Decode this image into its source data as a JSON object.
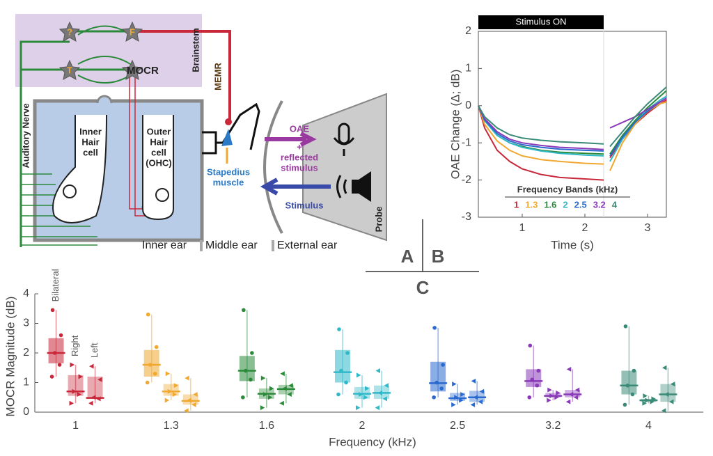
{
  "panel_labels": [
    "A",
    "B",
    "C"
  ],
  "diagram": {
    "brainstem": "Brainstem",
    "memr": "MEMR",
    "mocr": "MOCR",
    "auditory_nerve": "Auditory Nerve",
    "star_labels": [
      "?",
      "F",
      "T"
    ],
    "inner_hair_cell": [
      "Inner",
      "Hair",
      "cell"
    ],
    "outer_hair_cell": [
      "Outer",
      "Hair",
      "cell",
      "(OHC)"
    ],
    "stapedius_muscle": [
      "Stapedius",
      "muscle"
    ],
    "oae": "OAE",
    "plus": "+",
    "reflected_stimulus": [
      "reflected",
      "stimulus"
    ],
    "stimulus": "Stimulus",
    "probe": "Probe",
    "regions": [
      "Inner ear",
      "Middle ear",
      "External ear"
    ]
  },
  "chart_data": [
    {
      "type": "line",
      "ylabel": "OAE Change (Δ; dB)",
      "xlabel": "Time (s)",
      "annotation": {
        "text": "Stimulus ON",
        "x": [
          0.3,
          2.3
        ]
      },
      "legend_title": "Frequency Bands (kHz)",
      "x": [
        0.3,
        0.4,
        0.6,
        0.8,
        1.0,
        1.3,
        1.6,
        2.0,
        2.3,
        2.35,
        2.4,
        2.6,
        2.8,
        3.0,
        3.2,
        3.3
      ],
      "xlim": [
        0.3,
        3.3
      ],
      "xticks": [
        1,
        2,
        3
      ],
      "ylim": [
        -3,
        2
      ],
      "yticks": [
        -3,
        -2,
        -1,
        0,
        1,
        2
      ],
      "series": [
        {
          "name": "1",
          "color": "#c8283a",
          "values": [
            0,
            -0.6,
            -1.2,
            -1.5,
            -1.7,
            -1.85,
            -1.93,
            -1.97,
            -2.0,
            null,
            -1.4,
            -0.9,
            -0.5,
            -0.2,
            0.05,
            0.15
          ]
        },
        {
          "name": "1.3",
          "color": "#f0a830",
          "values": [
            0,
            -0.5,
            -0.95,
            -1.2,
            -1.35,
            -1.45,
            -1.5,
            -1.55,
            -1.57,
            null,
            -1.75,
            -1.0,
            -0.5,
            -0.15,
            0.05,
            0.1
          ]
        },
        {
          "name": "1.6",
          "color": "#2a8a3a",
          "values": [
            0,
            -0.4,
            -0.8,
            -1.0,
            -1.1,
            -1.2,
            -1.25,
            -1.28,
            -1.3,
            null,
            -1.3,
            -0.8,
            -0.4,
            -0.05,
            0.25,
            0.4
          ]
        },
        {
          "name": "2",
          "color": "#30b8c8",
          "values": [
            0,
            -0.4,
            -0.8,
            -1.0,
            -1.12,
            -1.22,
            -1.28,
            -1.33,
            -1.35,
            null,
            -1.5,
            -0.9,
            -0.45,
            -0.1,
            0.15,
            0.25
          ]
        },
        {
          "name": "2.5",
          "color": "#2a6ad0",
          "values": [
            0,
            -0.38,
            -0.75,
            -0.95,
            -1.05,
            -1.12,
            -1.17,
            -1.2,
            -1.22,
            null,
            -1.35,
            -0.85,
            -0.45,
            -0.15,
            0.1,
            0.2
          ]
        },
        {
          "name": "3.2",
          "color": "#8a3ab8",
          "values": [
            0,
            -0.35,
            -0.7,
            -0.9,
            -1.0,
            -1.07,
            -1.12,
            -1.15,
            -1.18,
            null,
            -0.6,
            -0.45,
            -0.3,
            -0.1,
            0.1,
            0.2
          ]
        },
        {
          "name": "4",
          "color": "#3a8a78",
          "values": [
            0,
            -0.3,
            -0.6,
            -0.78,
            -0.87,
            -0.93,
            -0.97,
            -1.0,
            -1.03,
            null,
            -1.1,
            -0.7,
            -0.3,
            0.05,
            0.35,
            0.5
          ]
        }
      ]
    },
    {
      "type": "box",
      "ylabel": "MOCR Magnitude (dB)",
      "xlabel": "Frequency (kHz)",
      "categories": [
        "1",
        "1.3",
        "1.6",
        "2",
        "2.5",
        "3.2",
        "4"
      ],
      "colors": [
        "#c8283a",
        "#f0a830",
        "#2a8a3a",
        "#30b8c8",
        "#2a6ad0",
        "#8a3ab8",
        "#3a8a78"
      ],
      "ylim": [
        0,
        4
      ],
      "yticks": [
        0,
        1,
        2,
        3,
        4
      ],
      "series": [
        {
          "name": "Bilateral",
          "marker": "circle",
          "min": [
            1.2,
            1.0,
            0.5,
            0.6,
            0.5,
            0.5,
            0.25
          ],
          "q1": [
            1.65,
            1.2,
            1.05,
            1.0,
            0.7,
            0.85,
            0.6
          ],
          "median": [
            2.0,
            1.6,
            1.4,
            1.35,
            0.98,
            1.05,
            0.9
          ],
          "q3": [
            2.5,
            2.1,
            1.9,
            2.1,
            1.7,
            1.45,
            1.4
          ],
          "max": [
            3.45,
            3.3,
            3.45,
            2.8,
            2.85,
            2.25,
            2.9
          ],
          "points": [
            [
              1.2,
              1.6,
              2.0,
              2.6,
              3.45
            ],
            [
              1.0,
              1.3,
              1.6,
              2.2,
              3.3
            ],
            [
              0.5,
              1.1,
              1.4,
              2.0,
              3.45
            ],
            [
              0.6,
              1.0,
              1.4,
              2.0,
              2.8
            ],
            [
              0.5,
              0.8,
              1.0,
              1.6,
              2.85
            ],
            [
              0.5,
              0.9,
              1.1,
              1.4,
              2.25
            ],
            [
              0.25,
              0.6,
              0.9,
              1.4,
              2.9
            ]
          ]
        },
        {
          "name": "Right",
          "marker": "triangle-right",
          "min": [
            0.3,
            0.4,
            0.15,
            0.15,
            0.25,
            0.4,
            0.3
          ],
          "q1": [
            0.55,
            0.55,
            0.45,
            0.45,
            0.38,
            0.5,
            0.35
          ],
          "median": [
            0.7,
            0.7,
            0.62,
            0.62,
            0.47,
            0.55,
            0.4
          ],
          "q3": [
            1.25,
            0.95,
            0.8,
            0.85,
            0.65,
            0.65,
            0.45
          ],
          "max": [
            1.6,
            1.3,
            1.15,
            1.25,
            0.95,
            0.75,
            0.55
          ],
          "points": [
            [
              0.3,
              0.6,
              0.7,
              1.2,
              1.6
            ],
            [
              0.4,
              0.6,
              0.7,
              0.9,
              1.3
            ],
            [
              0.15,
              0.5,
              0.6,
              0.8,
              1.15
            ],
            [
              0.15,
              0.5,
              0.6,
              0.8,
              1.25
            ],
            [
              0.25,
              0.4,
              0.5,
              0.6,
              0.95
            ],
            [
              0.4,
              0.5,
              0.55,
              0.65,
              0.75
            ],
            [
              0.3,
              0.35,
              0.4,
              0.45,
              0.55
            ]
          ]
        },
        {
          "name": "Left",
          "marker": "triangle-left",
          "min": [
            0.3,
            0.05,
            0.3,
            0.15,
            0.25,
            0.35,
            0.05
          ],
          "q1": [
            0.45,
            0.25,
            0.6,
            0.45,
            0.35,
            0.5,
            0.35
          ],
          "median": [
            0.48,
            0.38,
            0.78,
            0.65,
            0.5,
            0.6,
            0.6
          ],
          "q3": [
            1.2,
            0.6,
            0.92,
            0.9,
            0.72,
            0.75,
            0.95
          ],
          "max": [
            1.55,
            1.15,
            1.3,
            1.4,
            1.05,
            1.45,
            1.5
          ],
          "points": [
            [
              0.3,
              0.45,
              0.5,
              1.1,
              1.55
            ],
            [
              0.05,
              0.25,
              0.4,
              0.6,
              1.15
            ],
            [
              0.3,
              0.6,
              0.8,
              0.9,
              1.3
            ],
            [
              0.15,
              0.45,
              0.65,
              0.9,
              1.4
            ],
            [
              0.25,
              0.35,
              0.5,
              0.7,
              1.05
            ],
            [
              0.35,
              0.5,
              0.6,
              0.75,
              1.45
            ],
            [
              0.05,
              0.35,
              0.6,
              0.95,
              1.5
            ]
          ]
        }
      ]
    }
  ]
}
